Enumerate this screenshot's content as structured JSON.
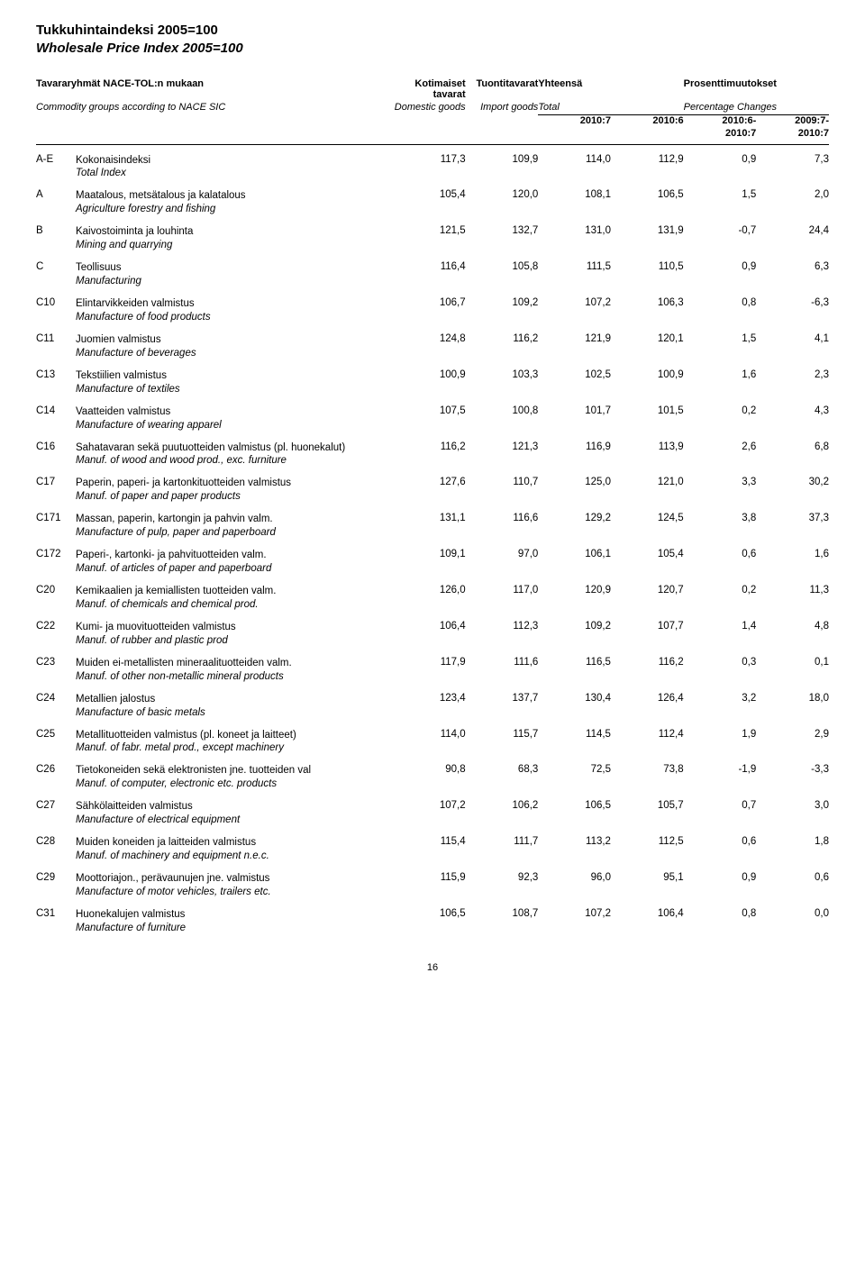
{
  "title": {
    "fi": "Tukkuhintaindeksi 2005=100",
    "en": "Wholesale Price Index 2005=100"
  },
  "header": {
    "col_group_fi": "Tavararyhmät NACE-TOL:n mukaan",
    "col_group_en": "Commodity groups according to NACE SIC",
    "col_domestic_fi": "Kotimaiset tavarat",
    "col_domestic_en": "Domestic goods",
    "col_import_fi": "Tuontitavarat",
    "col_import_en": "Import goods",
    "col_total_fi": "Yhteensä",
    "col_total_en": "Total",
    "col_pct_fi": "Prosenttimuutokset",
    "col_pct_en": "Percentage Changes",
    "sub_2010_7": "2010:7",
    "sub_2010_6": "2010:6",
    "sub_2010_6_2010_7a": "2010:6-",
    "sub_2010_6_2010_7b": "2010:7",
    "sub_2009_7_2010_7a": "2009:7-",
    "sub_2009_7_2010_7b": "2010:7"
  },
  "rows": [
    {
      "code": "A-E",
      "fi": "Kokonaisindeksi",
      "en": "Total Index",
      "v": [
        "117,3",
        "109,9",
        "114,0",
        "112,9",
        "0,9",
        "7,3"
      ]
    },
    {
      "code": "A",
      "fi": "Maatalous, metsätalous ja kalatalous",
      "en": "Agriculture forestry and fishing",
      "v": [
        "105,4",
        "120,0",
        "108,1",
        "106,5",
        "1,5",
        "2,0"
      ]
    },
    {
      "code": "B",
      "fi": "Kaivostoiminta ja louhinta",
      "en": "Mining and quarrying",
      "v": [
        "121,5",
        "132,7",
        "131,0",
        "131,9",
        "-0,7",
        "24,4"
      ]
    },
    {
      "code": "C",
      "fi": "Teollisuus",
      "en": "Manufacturing",
      "v": [
        "116,4",
        "105,8",
        "111,5",
        "110,5",
        "0,9",
        "6,3"
      ]
    },
    {
      "code": "C10",
      "fi": "Elintarvikkeiden valmistus",
      "en": "Manufacture of food products",
      "v": [
        "106,7",
        "109,2",
        "107,2",
        "106,3",
        "0,8",
        "-6,3"
      ]
    },
    {
      "code": "C11",
      "fi": "Juomien valmistus",
      "en": "Manufacture of beverages",
      "v": [
        "124,8",
        "116,2",
        "121,9",
        "120,1",
        "1,5",
        "4,1"
      ]
    },
    {
      "code": "C13",
      "fi": "Tekstiilien valmistus",
      "en": "Manufacture of textiles",
      "v": [
        "100,9",
        "103,3",
        "102,5",
        "100,9",
        "1,6",
        "2,3"
      ]
    },
    {
      "code": "C14",
      "fi": "Vaatteiden valmistus",
      "en": "Manufacture of wearing apparel",
      "v": [
        "107,5",
        "100,8",
        "101,7",
        "101,5",
        "0,2",
        "4,3"
      ]
    },
    {
      "code": "C16",
      "fi": "Sahatavaran sekä puutuotteiden valmistus (pl. huonekalut)",
      "en": "Manuf. of wood and wood prod., exc. furniture",
      "v": [
        "116,2",
        "121,3",
        "116,9",
        "113,9",
        "2,6",
        "6,8"
      ]
    },
    {
      "code": "C17",
      "fi": "Paperin, paperi- ja kartonkituotteiden valmistus",
      "en": "Manuf. of paper and paper products",
      "v": [
        "127,6",
        "110,7",
        "125,0",
        "121,0",
        "3,3",
        "30,2"
      ]
    },
    {
      "code": "C171",
      "fi": "Massan, paperin, kartongin ja pahvin valm.",
      "en": "Manufacture of pulp, paper and paperboard",
      "v": [
        "131,1",
        "116,6",
        "129,2",
        "124,5",
        "3,8",
        "37,3"
      ]
    },
    {
      "code": "C172",
      "fi": "Paperi-, kartonki- ja pahvituotteiden valm.",
      "en": "Manuf. of articles of paper and paperboard",
      "v": [
        "109,1",
        "97,0",
        "106,1",
        "105,4",
        "0,6",
        "1,6"
      ]
    },
    {
      "code": "C20",
      "fi": "Kemikaalien ja kemiallisten tuotteiden valm.",
      "en": "Manuf. of chemicals and chemical prod.",
      "v": [
        "126,0",
        "117,0",
        "120,9",
        "120,7",
        "0,2",
        "11,3"
      ]
    },
    {
      "code": "C22",
      "fi": "Kumi- ja muovituotteiden valmistus",
      "en": "Manuf. of rubber and plastic prod",
      "v": [
        "106,4",
        "112,3",
        "109,2",
        "107,7",
        "1,4",
        "4,8"
      ]
    },
    {
      "code": "C23",
      "fi": "Muiden ei-metallisten mineraalituotteiden valm.",
      "en": "Manuf. of other non-metallic mineral products",
      "v": [
        "117,9",
        "111,6",
        "116,5",
        "116,2",
        "0,3",
        "0,1"
      ]
    },
    {
      "code": "C24",
      "fi": "Metallien jalostus",
      "en": "Manufacture of basic metals",
      "v": [
        "123,4",
        "137,7",
        "130,4",
        "126,4",
        "3,2",
        "18,0"
      ]
    },
    {
      "code": "C25",
      "fi": "Metallituotteiden valmistus (pl. koneet ja laitteet)",
      "en": "Manuf. of fabr. metal prod., except machinery",
      "v": [
        "114,0",
        "115,7",
        "114,5",
        "112,4",
        "1,9",
        "2,9"
      ]
    },
    {
      "code": "C26",
      "fi": "Tietokoneiden sekä elektronisten jne. tuotteiden val",
      "en": "Manuf. of computer, electronic etc. products",
      "v": [
        "90,8",
        "68,3",
        "72,5",
        "73,8",
        "-1,9",
        "-3,3"
      ]
    },
    {
      "code": "C27",
      "fi": "Sähkölaitteiden valmistus",
      "en": "Manufacture of electrical equipment",
      "v": [
        "107,2",
        "106,2",
        "106,5",
        "105,7",
        "0,7",
        "3,0"
      ]
    },
    {
      "code": "C28",
      "fi": "Muiden koneiden ja laitteiden valmistus",
      "en": "Manuf. of machinery and equipment n.e.c.",
      "v": [
        "115,4",
        "111,7",
        "113,2",
        "112,5",
        "0,6",
        "1,8"
      ]
    },
    {
      "code": "C29",
      "fi": "Moottoriajon., perävaunujen jne. valmistus",
      "en": "Manufacture of motor vehicles, trailers etc.",
      "v": [
        "115,9",
        "92,3",
        "96,0",
        "95,1",
        "0,9",
        "0,6"
      ]
    },
    {
      "code": "C31",
      "fi": "Huonekalujen valmistus",
      "en": "Manufacture of furniture",
      "v": [
        "106,5",
        "108,7",
        "107,2",
        "106,4",
        "0,8",
        "0,0"
      ]
    }
  ],
  "page_number": "16"
}
